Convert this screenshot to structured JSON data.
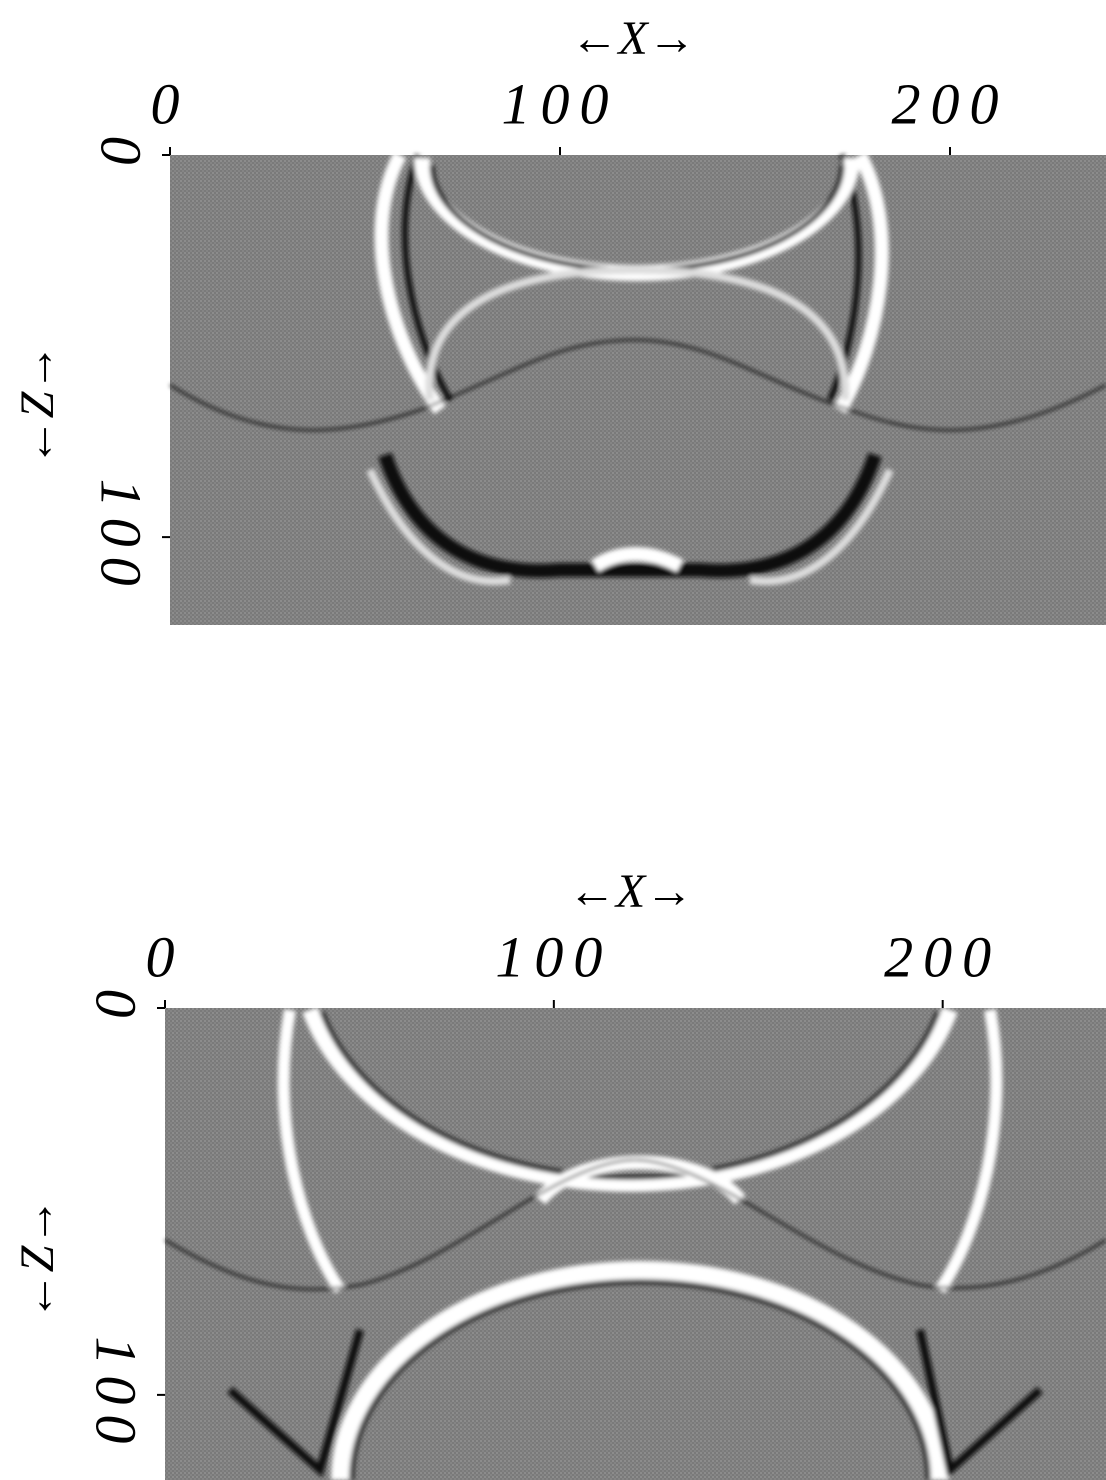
{
  "chart_data": [
    {
      "type": "image",
      "x_label": "←X→",
      "y_label": "←Z→",
      "xlim": [
        0,
        240
      ],
      "xticks": [
        0,
        100,
        200
      ],
      "ylim": [
        0,
        123
      ],
      "yticks": [
        0,
        100
      ]
    },
    {
      "type": "image",
      "x_label": "←X→",
      "y_label": "←Z→",
      "xlim": [
        0,
        242
      ],
      "xticks": [
        0,
        100,
        200
      ],
      "ylim": [
        0,
        122
      ],
      "yticks": [
        0,
        100
      ]
    }
  ]
}
